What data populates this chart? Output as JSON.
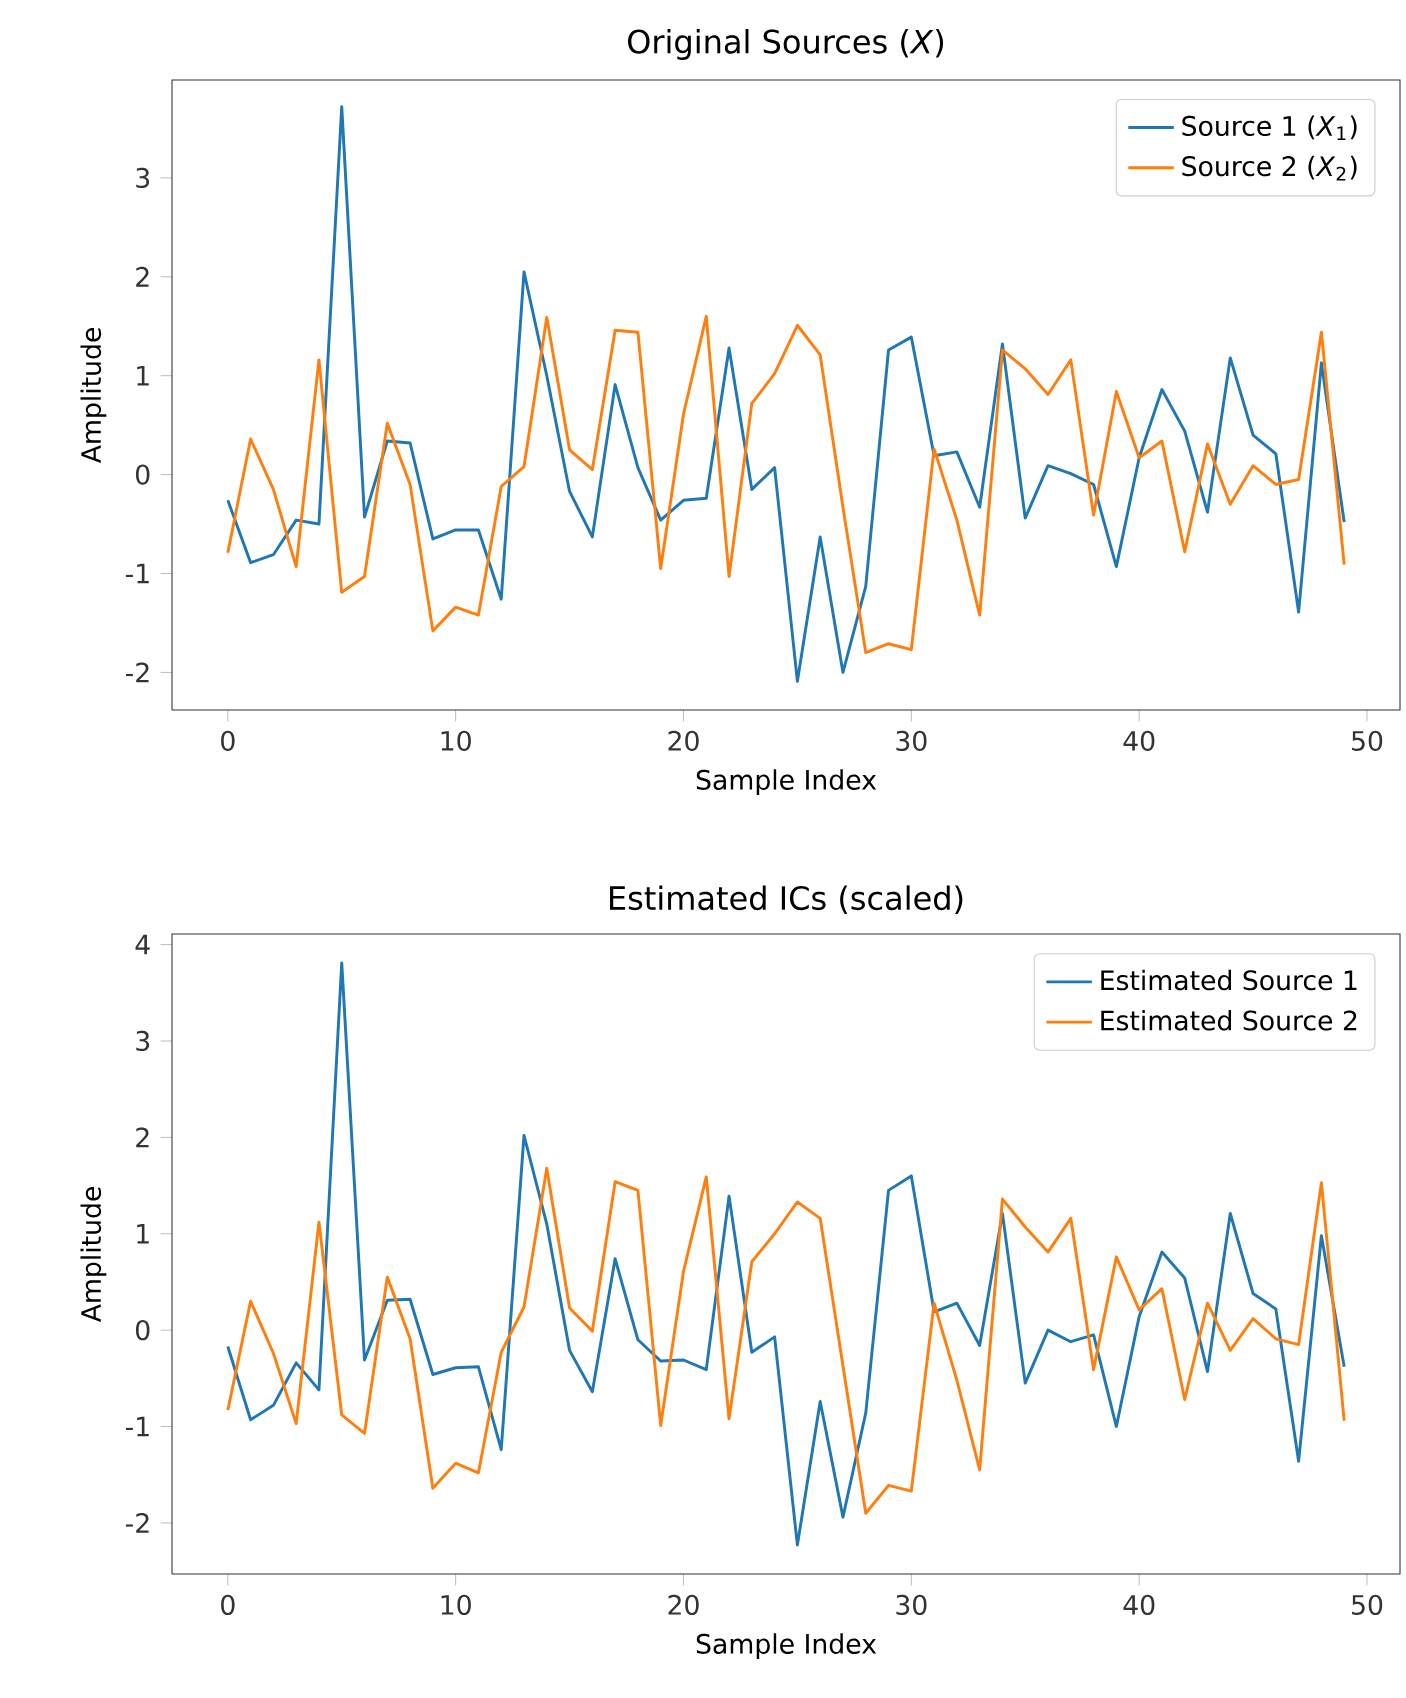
{
  "chart_data": [
    {
      "type": "line",
      "title": "Original Sources (*X*)",
      "xlabel": "Sample Index",
      "ylabel": "Amplitude",
      "x": [
        0,
        1,
        2,
        3,
        4,
        5,
        6,
        7,
        8,
        9,
        10,
        11,
        12,
        13,
        14,
        15,
        16,
        17,
        18,
        19,
        20,
        21,
        22,
        23,
        24,
        25,
        26,
        27,
        28,
        29,
        30,
        31,
        32,
        33,
        34,
        35,
        36,
        37,
        38,
        39,
        40,
        41,
        42,
        43,
        44,
        45,
        46,
        47,
        48,
        49
      ],
      "xlim": [
        -2.45,
        51.45
      ],
      "ylim": [
        -2.38,
        3.99
      ],
      "xticks": [
        0,
        10,
        20,
        30,
        40,
        50
      ],
      "yticks": [
        -2,
        -1,
        0,
        1,
        2,
        3
      ],
      "legend": "top right",
      "series": [
        {
          "name": "Source 1 (*X*$_{1}$)",
          "color": "#1f77b4",
          "values": [
            -0.26,
            -0.89,
            -0.81,
            -0.46,
            -0.5,
            3.72,
            -0.43,
            0.34,
            0.32,
            -0.65,
            -0.56,
            -0.56,
            -1.26,
            2.05,
            1.0,
            -0.17,
            -0.63,
            0.91,
            0.07,
            -0.46,
            -0.26,
            -0.24,
            1.28,
            -0.15,
            0.07,
            -2.09,
            -0.63,
            -2.0,
            -1.13,
            1.26,
            1.39,
            0.19,
            0.23,
            -0.33,
            1.32,
            -0.44,
            0.09,
            0.01,
            -0.1,
            -0.93,
            0.17,
            0.86,
            0.44,
            -0.38,
            1.18,
            0.4,
            0.21,
            -1.39,
            1.13,
            -0.48
          ]
        },
        {
          "name": "Source 2 (*X*$_{2}$)",
          "color": "#ff7f0e",
          "values": [
            -0.79,
            0.36,
            -0.15,
            -0.93,
            1.16,
            -1.19,
            -1.03,
            0.52,
            -0.1,
            -1.58,
            -1.34,
            -1.42,
            -0.12,
            0.08,
            1.59,
            0.25,
            0.05,
            1.46,
            1.44,
            -0.95,
            0.61,
            1.6,
            -1.03,
            0.72,
            1.02,
            1.51,
            1.21,
            -0.33,
            -1.8,
            -1.71,
            -1.77,
            0.26,
            -0.46,
            -1.42,
            1.26,
            1.07,
            0.81,
            1.16,
            -0.41,
            0.84,
            0.17,
            0.34,
            -0.78,
            0.31,
            -0.3,
            0.09,
            -0.1,
            -0.05,
            1.44,
            -0.91
          ]
        }
      ]
    },
    {
      "type": "line",
      "title": "Estimated ICs (scaled)",
      "xlabel": "Sample Index",
      "ylabel": "Amplitude",
      "x": [
        0,
        1,
        2,
        3,
        4,
        5,
        6,
        7,
        8,
        9,
        10,
        11,
        12,
        13,
        14,
        15,
        16,
        17,
        18,
        19,
        20,
        21,
        22,
        23,
        24,
        25,
        26,
        27,
        28,
        29,
        30,
        31,
        32,
        33,
        34,
        35,
        36,
        37,
        38,
        39,
        40,
        41,
        42,
        43,
        44,
        45,
        46,
        47,
        48,
        49
      ],
      "xlim": [
        -2.45,
        51.45
      ],
      "ylim": [
        -2.53,
        4.11
      ],
      "xticks": [
        0,
        10,
        20,
        30,
        40,
        50
      ],
      "yticks": [
        -2,
        -1,
        0,
        1,
        2,
        3,
        4
      ],
      "legend": "top right",
      "series": [
        {
          "name": "Estimated Source 1",
          "color": "#1f77b4",
          "values": [
            -0.17,
            -0.93,
            -0.78,
            -0.34,
            -0.62,
            3.81,
            -0.31,
            0.31,
            0.32,
            -0.46,
            -0.39,
            -0.38,
            -1.24,
            2.02,
            1.1,
            -0.21,
            -0.64,
            0.74,
            -0.1,
            -0.32,
            -0.31,
            -0.41,
            1.39,
            -0.23,
            -0.07,
            -2.23,
            -0.74,
            -1.94,
            -0.86,
            1.45,
            1.6,
            0.19,
            0.28,
            -0.16,
            1.21,
            -0.55,
            0.0,
            -0.12,
            -0.05,
            -1.0,
            0.14,
            0.81,
            0.54,
            -0.43,
            1.21,
            0.38,
            0.22,
            -1.36,
            0.98,
            -0.38
          ]
        },
        {
          "name": "Estimated Source 2",
          "color": "#ff7f0e",
          "values": [
            -0.83,
            0.3,
            -0.24,
            -0.97,
            1.12,
            -0.88,
            -1.07,
            0.55,
            -0.09,
            -1.64,
            -1.38,
            -1.48,
            -0.23,
            0.24,
            1.68,
            0.23,
            -0.01,
            1.54,
            1.45,
            -0.99,
            0.61,
            1.59,
            -0.92,
            0.71,
            1.0,
            1.33,
            1.16,
            -0.37,
            -1.9,
            -1.61,
            -1.67,
            0.28,
            -0.52,
            -1.45,
            1.36,
            1.07,
            0.81,
            1.16,
            -0.41,
            0.76,
            0.21,
            0.43,
            -0.72,
            0.28,
            -0.21,
            0.12,
            -0.09,
            -0.15,
            1.53,
            -0.94
          ]
        }
      ]
    }
  ]
}
